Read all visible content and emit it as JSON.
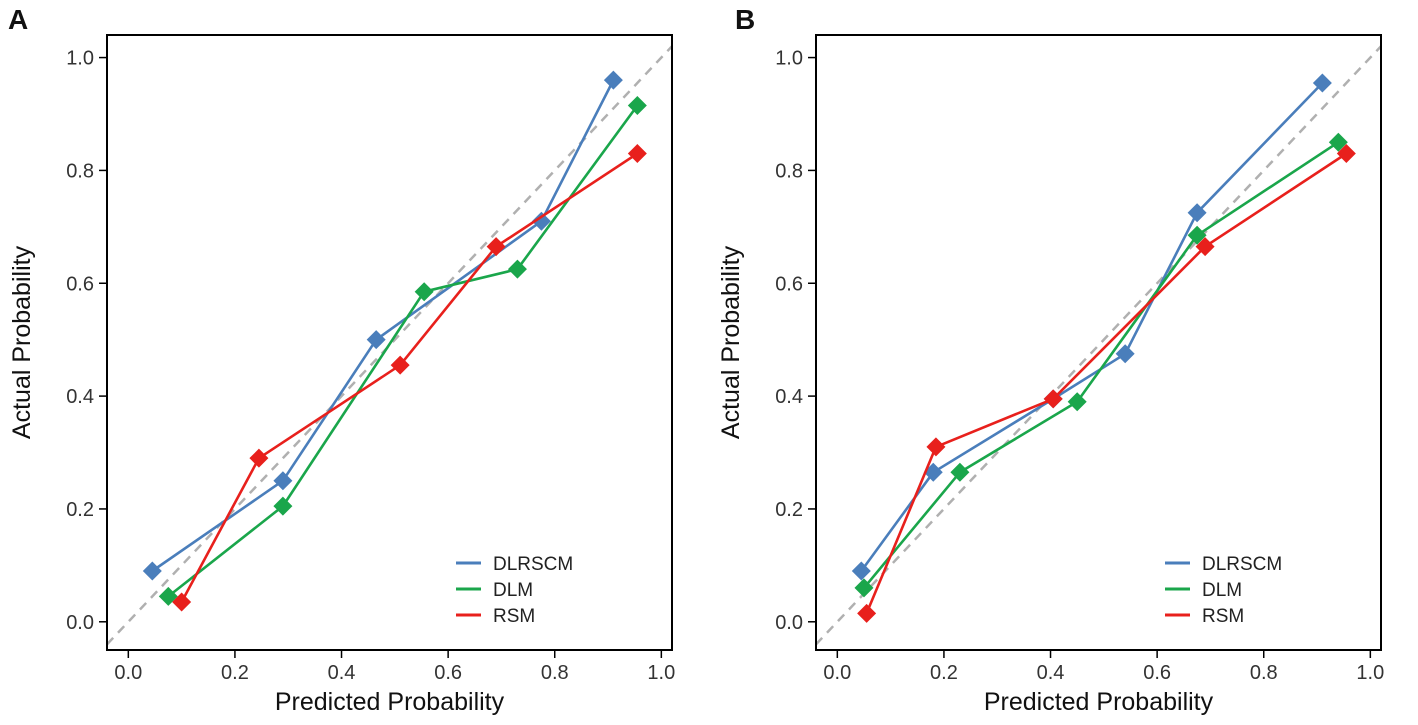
{
  "chart_data": [
    {
      "type": "line",
      "panel_label": "A",
      "xlabel": "Predicted Probability",
      "ylabel": "Actual Probability",
      "xlim": [
        -0.04,
        1.02
      ],
      "ylim": [
        -0.05,
        1.04
      ],
      "xticks": [
        "0.0",
        "0.2",
        "0.4",
        "0.6",
        "0.8",
        "1.0"
      ],
      "yticks": [
        "0.0",
        "0.2",
        "0.4",
        "0.6",
        "0.8",
        "1.0"
      ],
      "reference_line": "diagonal",
      "legend_position": "bottom-right",
      "series": [
        {
          "name": "DLRSCM",
          "color": "#4A7EBB",
          "x": [
            0.045,
            0.29,
            0.465,
            0.775,
            0.91
          ],
          "y": [
            0.09,
            0.25,
            0.5,
            0.71,
            0.96
          ]
        },
        {
          "name": "DLM",
          "color": "#1AA64B",
          "x": [
            0.075,
            0.29,
            0.555,
            0.73,
            0.955
          ],
          "y": [
            0.045,
            0.205,
            0.585,
            0.625,
            0.915
          ]
        },
        {
          "name": "RSM",
          "color": "#E8201C",
          "x": [
            0.1,
            0.245,
            0.51,
            0.69,
            0.955
          ],
          "y": [
            0.035,
            0.29,
            0.455,
            0.665,
            0.83
          ]
        }
      ]
    },
    {
      "type": "line",
      "panel_label": "B",
      "xlabel": "Predicted Probability",
      "ylabel": "Actual Probability",
      "xlim": [
        -0.04,
        1.02
      ],
      "ylim": [
        -0.05,
        1.04
      ],
      "xticks": [
        "0.0",
        "0.2",
        "0.4",
        "0.6",
        "0.8",
        "1.0"
      ],
      "yticks": [
        "0.0",
        "0.2",
        "0.4",
        "0.6",
        "0.8",
        "1.0"
      ],
      "reference_line": "diagonal",
      "legend_position": "bottom-right",
      "series": [
        {
          "name": "DLRSCM",
          "color": "#4A7EBB",
          "x": [
            0.045,
            0.18,
            0.405,
            0.54,
            0.675,
            0.91
          ],
          "y": [
            0.09,
            0.265,
            0.395,
            0.475,
            0.725,
            0.955
          ]
        },
        {
          "name": "DLM",
          "color": "#1AA64B",
          "x": [
            0.05,
            0.23,
            0.45,
            0.675,
            0.94
          ],
          "y": [
            0.06,
            0.265,
            0.39,
            0.685,
            0.85
          ]
        },
        {
          "name": "RSM",
          "color": "#E8201C",
          "x": [
            0.055,
            0.185,
            0.405,
            0.69,
            0.955
          ],
          "y": [
            0.015,
            0.31,
            0.395,
            0.665,
            0.83
          ]
        }
      ]
    }
  ]
}
